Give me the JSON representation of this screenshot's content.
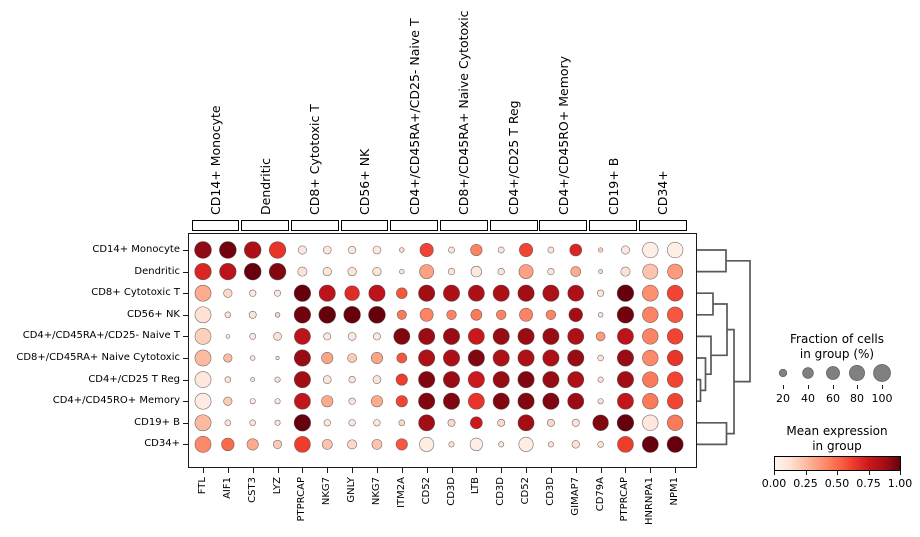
{
  "chart_data": {
    "type": "dotplot",
    "description": "Dot plot of mean expression and fraction of expressing cells per marker gene across cell types, with column group brackets and a row dendrogram",
    "rows": [
      "CD14+ Monocyte",
      "Dendritic",
      "CD8+ Cytotoxic T",
      "CD56+ NK",
      "CD4+/CD45RA+/CD25- Naive T",
      "CD8+/CD45RA+ Naive Cytotoxic",
      "CD4+/CD25 T Reg",
      "CD4+/CD45RO+ Memory",
      "CD19+ B",
      "CD34+"
    ],
    "columns": [
      "FTL",
      "AIF1",
      "CST3",
      "LYZ",
      "PTPRCAP",
      "NKG7",
      "GNLY",
      "NKG7",
      "ITM2A",
      "CD52",
      "CD3D",
      "LTB",
      "CD3D",
      "CD52",
      "CD3D",
      "GIMAP7",
      "CD79A",
      "PTPRCAP",
      "HNRNPA1",
      "NPM1"
    ],
    "column_groups": [
      {
        "label": "CD14+ Monocyte",
        "span": [
          0,
          1
        ]
      },
      {
        "label": "Dendritic",
        "span": [
          2,
          3
        ]
      },
      {
        "label": "CD8+ Cytotoxic T",
        "span": [
          4,
          5
        ]
      },
      {
        "label": "CD56+ NK",
        "span": [
          6,
          7
        ]
      },
      {
        "label": "CD4+/CD45RA+/CD25- Naive T",
        "span": [
          8,
          9
        ]
      },
      {
        "label": "CD8+/CD45RA+ Naive Cytotoxic",
        "span": [
          10,
          11
        ]
      },
      {
        "label": "CD4+/CD25 T Reg",
        "span": [
          12,
          13
        ]
      },
      {
        "label": "CD4+/CD45RO+ Memory",
        "span": [
          14,
          15
        ]
      },
      {
        "label": "CD19+ B",
        "span": [
          16,
          17
        ]
      },
      {
        "label": "CD34+",
        "span": [
          18,
          19
        ]
      }
    ],
    "fraction_percent": [
      [
        98,
        98,
        97,
        95,
        24,
        22,
        20,
        22,
        8,
        62,
        13,
        46,
        13,
        62,
        13,
        50,
        7,
        24,
        85,
        85
      ],
      [
        95,
        95,
        98,
        96,
        30,
        25,
        25,
        25,
        8,
        70,
        15,
        40,
        15,
        70,
        15,
        35,
        6,
        30,
        80,
        80
      ],
      [
        90,
        25,
        15,
        14,
        95,
        92,
        75,
        92,
        40,
        92,
        92,
        90,
        92,
        92,
        92,
        88,
        15,
        95,
        88,
        88
      ],
      [
        90,
        12,
        18,
        8,
        95,
        98,
        97,
        98,
        30,
        60,
        32,
        42,
        32,
        60,
        32,
        65,
        8,
        95,
        85,
        85
      ],
      [
        90,
        5,
        13,
        22,
        90,
        18,
        22,
        18,
        90,
        92,
        92,
        90,
        92,
        92,
        92,
        90,
        28,
        90,
        85,
        85
      ],
      [
        90,
        25,
        8,
        4,
        92,
        45,
        28,
        45,
        35,
        92,
        92,
        92,
        92,
        92,
        92,
        92,
        12,
        92,
        85,
        85
      ],
      [
        90,
        12,
        6,
        10,
        92,
        22,
        15,
        22,
        45,
        92,
        92,
        92,
        92,
        92,
        92,
        90,
        10,
        92,
        85,
        85
      ],
      [
        90,
        25,
        10,
        10,
        90,
        45,
        15,
        45,
        45,
        92,
        92,
        90,
        92,
        92,
        92,
        90,
        10,
        90,
        85,
        85
      ],
      [
        90,
        12,
        12,
        10,
        95,
        15,
        15,
        15,
        12,
        90,
        18,
        50,
        18,
        90,
        18,
        18,
        85,
        95,
        85,
        85
      ],
      [
        90,
        55,
        45,
        25,
        88,
        35,
        30,
        35,
        45,
        72,
        10,
        55,
        10,
        72,
        10,
        20,
        12,
        88,
        90,
        90
      ]
    ],
    "mean_expression": [
      [
        0.92,
        0.98,
        0.85,
        0.65,
        0.08,
        0.08,
        0.08,
        0.08,
        0.15,
        0.6,
        0.1,
        0.42,
        0.1,
        0.6,
        0.1,
        0.7,
        0.2,
        0.08,
        0.04,
        0.04
      ],
      [
        0.7,
        0.8,
        1.0,
        0.95,
        0.12,
        0.1,
        0.1,
        0.1,
        0.1,
        0.33,
        0.1,
        0.08,
        0.1,
        0.33,
        0.1,
        0.3,
        0.15,
        0.12,
        0.22,
        0.35
      ],
      [
        0.3,
        0.15,
        0.08,
        0.08,
        1.0,
        0.8,
        0.68,
        0.8,
        0.55,
        0.88,
        0.85,
        0.85,
        0.85,
        0.88,
        0.85,
        0.85,
        0.1,
        1.0,
        0.38,
        0.6
      ],
      [
        0.12,
        0.1,
        0.1,
        0.15,
        0.98,
        1.0,
        1.0,
        1.0,
        0.45,
        0.42,
        0.42,
        0.45,
        0.42,
        0.42,
        0.42,
        0.88,
        0.1,
        0.98,
        0.42,
        0.55
      ],
      [
        0.18,
        0.1,
        0.08,
        0.12,
        0.8,
        0.08,
        0.08,
        0.08,
        0.95,
        0.9,
        0.9,
        0.75,
        0.9,
        0.9,
        0.9,
        0.85,
        0.35,
        0.8,
        0.42,
        0.6
      ],
      [
        0.25,
        0.25,
        0.1,
        0.1,
        0.9,
        0.32,
        0.2,
        0.32,
        0.55,
        0.85,
        0.85,
        0.95,
        0.85,
        0.85,
        0.85,
        0.9,
        0.1,
        0.9,
        0.4,
        0.65
      ],
      [
        0.08,
        0.1,
        0.1,
        0.1,
        0.88,
        0.1,
        0.1,
        0.1,
        0.62,
        0.95,
        0.9,
        0.75,
        0.9,
        0.95,
        0.9,
        0.85,
        0.1,
        0.88,
        0.45,
        0.6
      ],
      [
        0.06,
        0.2,
        0.08,
        0.08,
        0.78,
        0.3,
        0.1,
        0.3,
        0.6,
        0.95,
        0.95,
        0.65,
        0.95,
        0.95,
        0.95,
        0.9,
        0.1,
        0.78,
        0.45,
        0.6
      ],
      [
        0.25,
        0.1,
        0.1,
        0.1,
        1.0,
        0.08,
        0.08,
        0.08,
        0.15,
        0.88,
        0.15,
        0.75,
        0.15,
        0.88,
        0.15,
        0.1,
        0.95,
        1.0,
        0.08,
        0.45
      ],
      [
        0.4,
        0.5,
        0.3,
        0.2,
        0.62,
        0.22,
        0.15,
        0.22,
        0.55,
        0.05,
        0.1,
        0.04,
        0.1,
        0.05,
        0.1,
        0.1,
        0.1,
        0.62,
        1.0,
        1.0
      ]
    ],
    "size_legend": {
      "title_line1": "Fraction of cells",
      "title_line2": "in group (%)",
      "ticks": [
        "20",
        "40",
        "60",
        "80",
        "100"
      ],
      "dot_color": "#808080"
    },
    "color_legend": {
      "title_line1": "Mean expression",
      "title_line2": "in group",
      "ticks": [
        "0.00",
        "0.25",
        "0.50",
        "0.75",
        "1.00"
      ],
      "cmap_name": "Reds",
      "cmap_stops": [
        [
          0.0,
          "#fff5f0"
        ],
        [
          0.125,
          "#fee0d2"
        ],
        [
          0.25,
          "#fcbba1"
        ],
        [
          0.375,
          "#fc9272"
        ],
        [
          0.5,
          "#fb6a4a"
        ],
        [
          0.625,
          "#ef3b2c"
        ],
        [
          0.75,
          "#cb181d"
        ],
        [
          0.875,
          "#a50f15"
        ],
        [
          1.0,
          "#67000d"
        ]
      ]
    },
    "dendrogram": {
      "orientation": "right",
      "line_color": "#595959",
      "merges": [
        {
          "id": "m0",
          "children": [
            6,
            7
          ],
          "dist": 3.5
        },
        {
          "id": "m1",
          "children": [
            5,
            "m0"
          ],
          "dist": 8.5
        },
        {
          "id": "m2",
          "children": [
            4,
            "m1"
          ],
          "dist": 14
        },
        {
          "id": "m3",
          "children": [
            2,
            3
          ],
          "dist": 16
        },
        {
          "id": "m4",
          "children": [
            "m3",
            "m2"
          ],
          "dist": 30
        },
        {
          "id": "m5",
          "children": [
            8,
            9
          ],
          "dist": 29.5
        },
        {
          "id": "m6",
          "children": [
            "m4",
            "m5"
          ],
          "dist": 37
        },
        {
          "id": "m7",
          "children": [
            0,
            1
          ],
          "dist": 29
        },
        {
          "id": "m8",
          "children": [
            "m7",
            "m6"
          ],
          "dist": 53
        }
      ]
    }
  }
}
